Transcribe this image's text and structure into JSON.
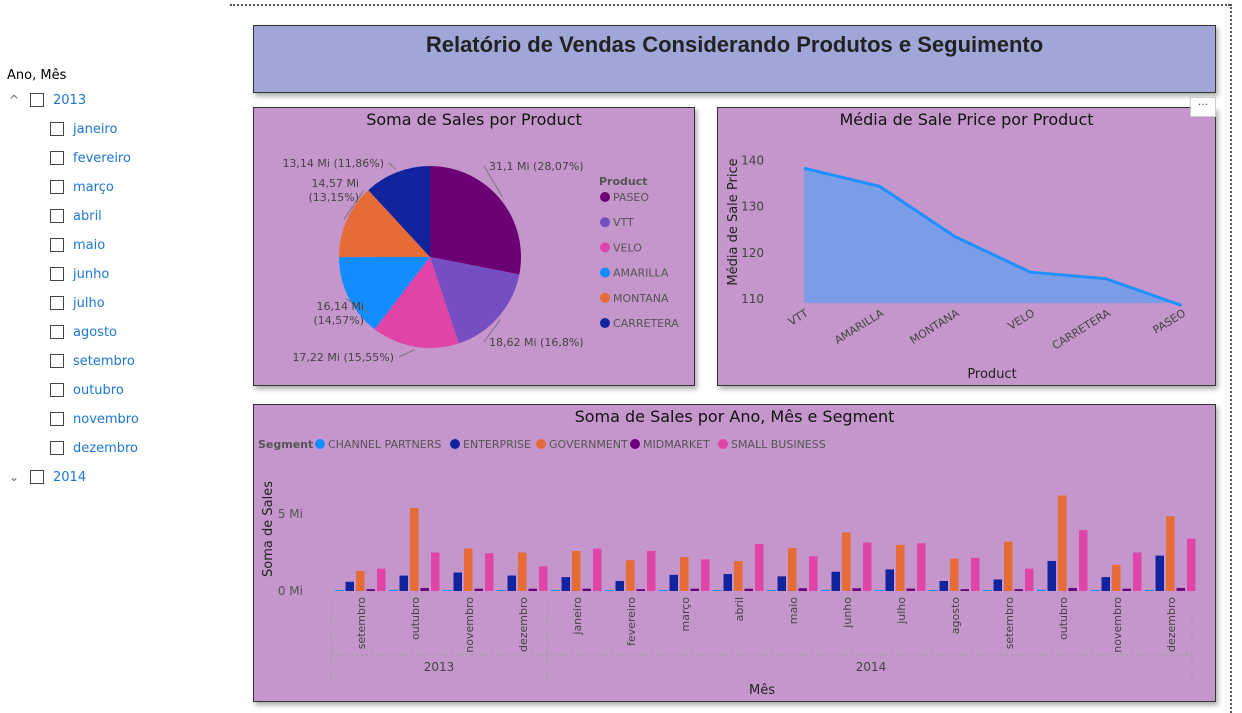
{
  "report_title": "Relatório de Vendas Considerando Produtos e Seguimento",
  "slicer": {
    "title": "Ano, Mês",
    "years": [
      {
        "label": "2013",
        "expanded": true,
        "chevron": "^",
        "months": [
          "janeiro",
          "fevereiro",
          "março",
          "abril",
          "maio",
          "junho",
          "julho",
          "agosto",
          "setembro",
          "outubro",
          "novembro",
          "dezembro"
        ]
      },
      {
        "label": "2014",
        "expanded": false,
        "chevron": "⌄",
        "months": []
      }
    ]
  },
  "more_options_label": "···",
  "colors": {
    "panel_bg": "#c596cb",
    "header_bg": "#a1a6d9",
    "line": "#1e90ff",
    "area": "#7b9ce6",
    "slicer_text": "#1d76d2"
  },
  "chart_data": [
    {
      "type": "pie",
      "title": "Soma de Sales por Product",
      "legend_title": "Product",
      "legend_position": "right",
      "slices": [
        {
          "name": "PASEO",
          "value": 31.1,
          "label": "31,1 Mi (28,07%)",
          "color": "#6b0074"
        },
        {
          "name": "VTT",
          "value": 18.62,
          "label": "18,62 Mi (16,8%)",
          "color": "#744ec2"
        },
        {
          "name": "VELO",
          "value": 17.22,
          "label": "17,22 Mi (15,55%)",
          "color": "#e044a7"
        },
        {
          "name": "AMARILLA",
          "value": 16.14,
          "label": "16,14 Mi (14,57%)",
          "color": "#118dff"
        },
        {
          "name": "MONTANA",
          "value": 14.57,
          "label": "14,57 Mi (13,15%)",
          "color": "#e66c37"
        },
        {
          "name": "CARRETERA",
          "value": 13.14,
          "label": "13,14 Mi (11,86%)",
          "color": "#12239e"
        }
      ]
    },
    {
      "type": "area",
      "title": "Média de Sale Price por Product",
      "xlabel": "Product",
      "ylabel": "Média de Sale Price",
      "categories": [
        "VTT",
        "AMARILLA",
        "MONTANA",
        "VELO",
        "CARRETERA",
        "PASEO"
      ],
      "values": [
        138.3,
        134.4,
        123.5,
        115.8,
        114.4,
        108.6
      ],
      "yticks": [
        110,
        120,
        130,
        140
      ],
      "ylim": [
        105,
        142
      ],
      "grid": false
    },
    {
      "type": "bar",
      "title": "Soma de Sales por Ano, Mês e Segment",
      "legend_title": "Segment",
      "legend_position": "top-left",
      "xlabel": "Mês",
      "ylabel": "Soma de Sales",
      "ytick_labels": [
        "0 Mi",
        "5 Mi"
      ],
      "yticks": [
        0,
        5
      ],
      "ylim": [
        0,
        7
      ],
      "categories": [
        "setembro",
        "outubro",
        "novembro",
        "dezembro",
        "janeiro",
        "fevereiro",
        "março",
        "abril",
        "maio",
        "junho",
        "julho",
        "agosto",
        "setembro",
        "outubro",
        "novembro",
        "dezembro"
      ],
      "years": [
        {
          "label": "2013",
          "span": 4
        },
        {
          "label": "2014",
          "span": 12
        }
      ],
      "series": [
        {
          "name": "CHANNEL PARTNERS",
          "color": "#118dff",
          "values": [
            0.05,
            0.07,
            0.06,
            0.05,
            0.07,
            0.05,
            0.06,
            0.06,
            0.06,
            0.07,
            0.06,
            0.06,
            0.05,
            0.08,
            0.06,
            0.07
          ]
        },
        {
          "name": "ENTERPRISE",
          "color": "#12239e",
          "values": [
            0.6,
            1.0,
            1.2,
            1.0,
            0.9,
            0.65,
            1.05,
            1.1,
            0.95,
            1.25,
            1.4,
            0.65,
            0.75,
            1.95,
            0.9,
            2.3
          ]
        },
        {
          "name": "GOVERNMENT",
          "color": "#e66c37",
          "values": [
            1.3,
            5.4,
            2.75,
            2.5,
            2.6,
            2.0,
            2.2,
            1.95,
            2.8,
            3.8,
            3.0,
            2.1,
            3.2,
            6.2,
            1.7,
            4.85
          ]
        },
        {
          "name": "MIDMARKET",
          "color": "#6b007b",
          "values": [
            0.12,
            0.2,
            0.15,
            0.15,
            0.15,
            0.12,
            0.15,
            0.15,
            0.18,
            0.18,
            0.16,
            0.12,
            0.12,
            0.2,
            0.15,
            0.2
          ]
        },
        {
          "name": "SMALL BUSINESS",
          "color": "#e044a7",
          "values": [
            1.45,
            2.5,
            2.45,
            1.6,
            2.75,
            2.6,
            2.05,
            3.05,
            2.25,
            3.15,
            3.1,
            2.15,
            1.45,
            3.95,
            2.5,
            3.4
          ]
        }
      ]
    }
  ]
}
